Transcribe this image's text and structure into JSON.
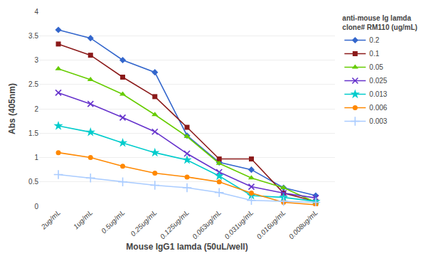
{
  "chart_data": {
    "type": "line",
    "xlabel": "Mouse IgG1 lamda (50uL/well)",
    "ylabel": "Abs (405nm)",
    "legend_title": "anti-mouse Ig lamda\nclone# RM110 (ug/mL)",
    "categories": [
      "2ug/mL",
      "1ug/mL",
      "0.5ug/mL",
      "0.25ug/mL",
      "0.125ug/mL",
      "0.063ug/mL",
      "0.031ug/mL",
      "0.016ug/mL",
      "0.008ug/mL"
    ],
    "series": [
      {
        "name": "0.2",
        "color": "#3366cc",
        "marker": "diamond",
        "values": [
          3.62,
          3.45,
          3.0,
          2.75,
          1.45,
          0.9,
          0.75,
          0.38,
          0.22
        ]
      },
      {
        "name": "0.1",
        "color": "#8b1a1a",
        "marker": "square",
        "values": [
          3.33,
          3.1,
          2.65,
          2.25,
          1.62,
          0.97,
          0.97,
          0.27,
          0.1
        ]
      },
      {
        "name": "0.05",
        "color": "#66cc00",
        "marker": "triangle-up",
        "values": [
          2.82,
          2.6,
          2.3,
          1.88,
          1.43,
          0.88,
          0.58,
          0.38,
          0.08
        ]
      },
      {
        "name": "0.025",
        "color": "#6633cc",
        "marker": "x",
        "values": [
          2.33,
          2.1,
          1.82,
          1.53,
          1.08,
          0.7,
          0.4,
          0.27,
          0.17
        ]
      },
      {
        "name": "0.013",
        "color": "#00cccc",
        "marker": "star",
        "values": [
          1.65,
          1.52,
          1.3,
          1.1,
          0.95,
          0.62,
          0.22,
          0.18,
          0.1
        ]
      },
      {
        "name": "0.006",
        "color": "#ff8800",
        "marker": "circle",
        "values": [
          1.1,
          1.0,
          0.82,
          0.68,
          0.6,
          0.5,
          0.27,
          0.08,
          0.03
        ]
      },
      {
        "name": "0.003",
        "color": "#aaccff",
        "marker": "cross",
        "values": [
          0.65,
          0.58,
          0.5,
          0.43,
          0.38,
          0.28,
          0.12,
          0.1,
          0.08
        ]
      }
    ],
    "ylim": [
      0,
      4
    ],
    "yticks": [
      0,
      0.5,
      1,
      1.5,
      2,
      2.5,
      3,
      3.5,
      4
    ],
    "grid": true,
    "legend": "right"
  }
}
